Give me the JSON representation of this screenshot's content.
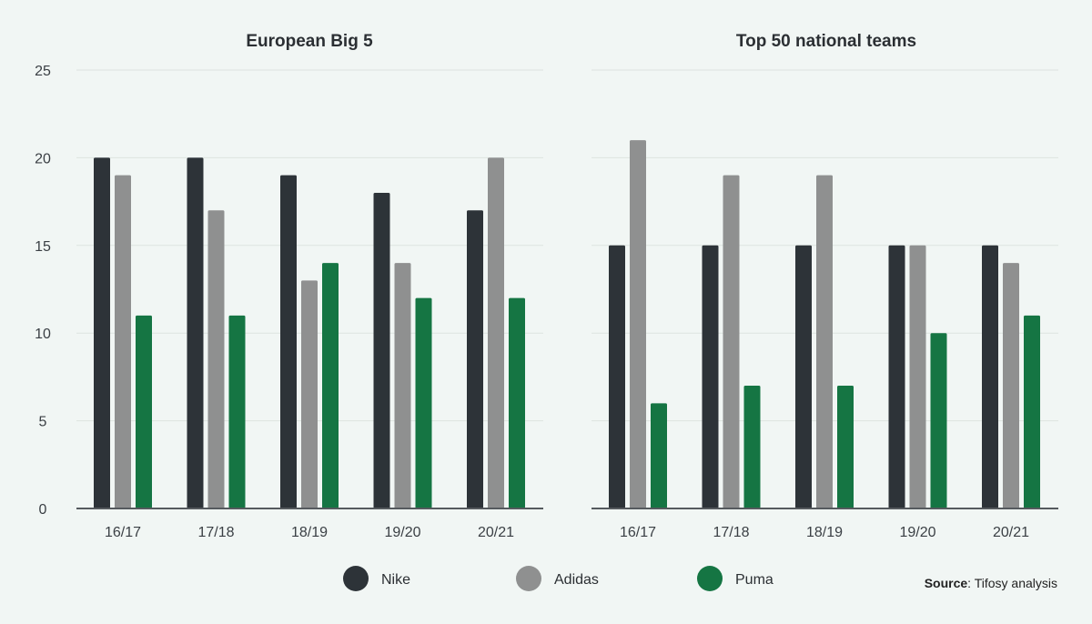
{
  "colors": {
    "Nike": "#2d3338",
    "Adidas": "#8f9090",
    "Puma": "#157543",
    "grid": "#dde3e0",
    "axis": "#555a5e"
  },
  "chart_data": [
    {
      "type": "bar",
      "title": "European Big 5",
      "categories": [
        "16/17",
        "17/18",
        "18/19",
        "19/20",
        "20/21"
      ],
      "series": [
        {
          "name": "Nike",
          "values": [
            20,
            20,
            19,
            18,
            17
          ]
        },
        {
          "name": "Adidas",
          "values": [
            19,
            17,
            13,
            14,
            20
          ]
        },
        {
          "name": "Puma",
          "values": [
            11,
            11,
            14,
            12,
            12
          ]
        }
      ],
      "ylim": [
        0,
        25
      ],
      "yticks": [
        0,
        5,
        10,
        15,
        20,
        25
      ],
      "grid": true
    },
    {
      "type": "bar",
      "title": "Top 50 national teams",
      "categories": [
        "16/17",
        "17/18",
        "18/19",
        "19/20",
        "20/21"
      ],
      "series": [
        {
          "name": "Nike",
          "values": [
            15,
            15,
            15,
            15,
            15
          ]
        },
        {
          "name": "Adidas",
          "values": [
            21,
            19,
            19,
            15,
            14
          ]
        },
        {
          "name": "Puma",
          "values": [
            6,
            7,
            7,
            10,
            11
          ]
        }
      ],
      "ylim": [
        0,
        25
      ],
      "yticks": [
        0,
        5,
        10,
        15,
        20,
        25
      ],
      "grid": true
    }
  ],
  "legend": {
    "placement": "bottom-center",
    "items": [
      "Nike",
      "Adidas",
      "Puma"
    ]
  },
  "source": {
    "label": "Source",
    "text": ": Tifosy analysis"
  }
}
